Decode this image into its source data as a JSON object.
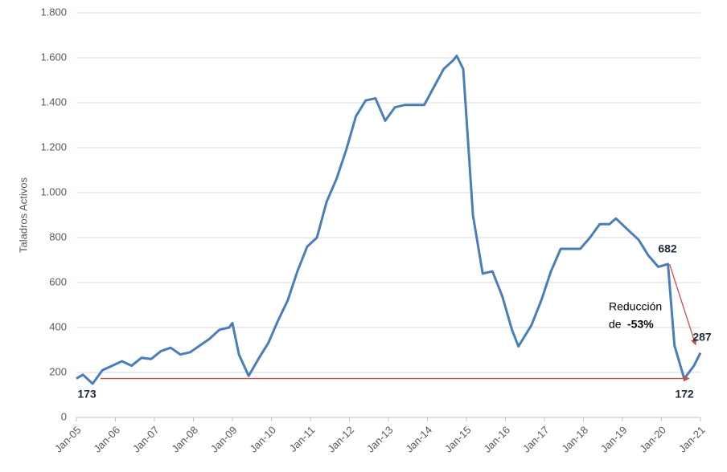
{
  "chart_data": {
    "type": "line",
    "y_label": "Taladros Activos",
    "x": [
      "2005-01",
      "2005-03",
      "2005-06",
      "2005-09",
      "2005-12",
      "2006-03",
      "2006-06",
      "2006-09",
      "2006-12",
      "2007-03",
      "2007-06",
      "2007-09",
      "2007-12",
      "2008-03",
      "2008-06",
      "2008-09",
      "2008-12",
      "2009-01",
      "2009-03",
      "2009-06",
      "2009-09",
      "2009-12",
      "2010-03",
      "2010-06",
      "2010-09",
      "2010-12",
      "2011-03",
      "2011-06",
      "2011-09",
      "2011-12",
      "2012-03",
      "2012-06",
      "2012-09",
      "2012-12",
      "2013-03",
      "2013-06",
      "2013-09",
      "2013-12",
      "2014-03",
      "2014-06",
      "2014-09",
      "2014-10",
      "2014-12",
      "2015-03",
      "2015-06",
      "2015-09",
      "2015-12",
      "2016-03",
      "2016-05",
      "2016-09",
      "2016-12",
      "2017-03",
      "2017-06",
      "2017-09",
      "2017-12",
      "2018-03",
      "2018-06",
      "2018-09",
      "2018-11",
      "2019-03",
      "2019-06",
      "2019-09",
      "2019-12",
      "2020-03",
      "2020-05",
      "2020-08",
      "2020-11",
      "2021-01"
    ],
    "series": [
      {
        "name": "Taladros Activos",
        "color": "#4a7ebb",
        "values": [
          173,
          190,
          150,
          210,
          230,
          250,
          230,
          265,
          260,
          295,
          310,
          280,
          290,
          320,
          350,
          390,
          400,
          420,
          280,
          185,
          260,
          330,
          430,
          520,
          650,
          760,
          800,
          960,
          1060,
          1190,
          1340,
          1410,
          1420,
          1320,
          1380,
          1390,
          1390,
          1390,
          1470,
          1550,
          1590,
          1609,
          1550,
          900,
          640,
          650,
          540,
          390,
          316,
          410,
          520,
          650,
          750,
          750,
          750,
          800,
          860,
          860,
          885,
          830,
          790,
          720,
          670,
          682,
          320,
          172,
          230,
          287
        ]
      }
    ],
    "ylim": [
      0,
      1800
    ],
    "yticks": [
      0,
      200,
      400,
      600,
      800,
      {
        "value": 1000,
        "label": "1.000"
      },
      {
        "value": 1200,
        "label": "1.200"
      },
      {
        "value": 1400,
        "label": "1.400"
      },
      {
        "value": 1600,
        "label": "1.600"
      },
      {
        "value": 1800,
        "label": "1.800"
      }
    ],
    "xlim": [
      "2005-01",
      "2021-01"
    ],
    "xticks": [
      {
        "value": "2005-01",
        "label": "Jan-05"
      },
      {
        "value": "2006-01",
        "label": "Jan-06"
      },
      {
        "value": "2007-01",
        "label": "Jan-07"
      },
      {
        "value": "2008-01",
        "label": "Jan-08"
      },
      {
        "value": "2009-01",
        "label": "Jan-09"
      },
      {
        "value": "2010-01",
        "label": "Jan-10"
      },
      {
        "value": "2011-01",
        "label": "Jan-11"
      },
      {
        "value": "2012-01",
        "label": "Jan-12"
      },
      {
        "value": "2013-01",
        "label": "Jan-13"
      },
      {
        "value": "2014-01",
        "label": "Jan-14"
      },
      {
        "value": "2015-01",
        "label": "Jan-15"
      },
      {
        "value": "2016-01",
        "label": "Jan-16"
      },
      {
        "value": "2017-01",
        "label": "Jan-17"
      },
      {
        "value": "2018-01",
        "label": "Jan-18"
      },
      {
        "value": "2019-01",
        "label": "Jan-19"
      },
      {
        "value": "2020-01",
        "label": "Jan-20"
      },
      {
        "value": "2021-01",
        "label": "Jan-21"
      }
    ],
    "grid": true,
    "annotations": [
      "173",
      "682",
      "287",
      "172",
      "Reducción",
      "de",
      "-53%"
    ]
  }
}
